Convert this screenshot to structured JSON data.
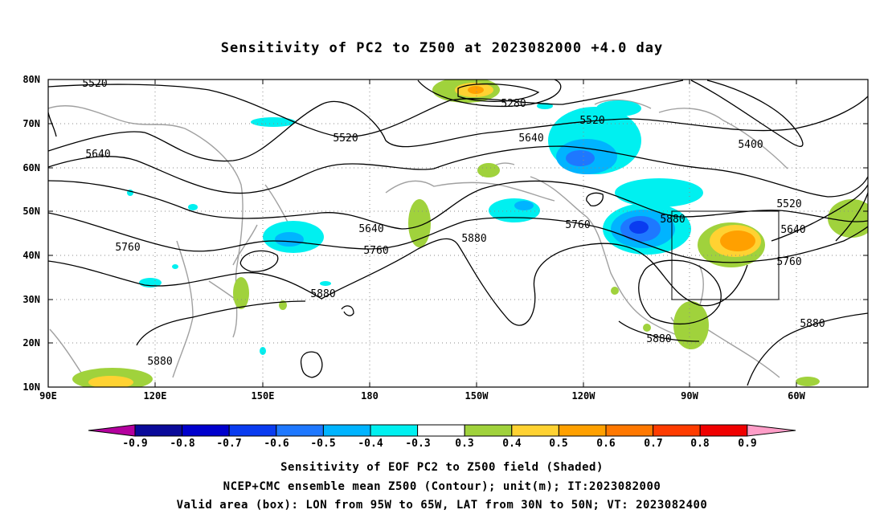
{
  "title": "Sensitivity of PC2 to Z500 at 2023082000 +4.0 day",
  "lat_labels": [
    "80N",
    "70N",
    "60N",
    "50N",
    "40N",
    "30N",
    "20N",
    "10N"
  ],
  "lon_labels": [
    "90E",
    "120E",
    "150E",
    "180",
    "150W",
    "120W",
    "90W",
    "60W"
  ],
  "contour_labels": [
    "5520",
    "5280",
    "5520",
    "5400",
    "5640",
    "5520",
    "5640",
    "5520",
    "5640",
    "5760",
    "5880",
    "5640",
    "5760",
    "5880",
    "5760",
    "5880",
    "5880",
    "5760",
    "5880",
    "5880"
  ],
  "colorbar": {
    "labels": [
      "-0.9",
      "-0.8",
      "-0.7",
      "-0.6",
      "-0.5",
      "-0.4",
      "-0.3",
      "0.3",
      "0.4",
      "0.5",
      "0.6",
      "0.7",
      "0.8",
      "0.9"
    ],
    "colors": [
      "#b4009e",
      "#0a0a9a",
      "#0000cd",
      "#0a3cf0",
      "#1e78ff",
      "#00b4ff",
      "#00f0f0",
      "#ffffff",
      "#a0d23c",
      "#ffd232",
      "#ffa000",
      "#ff7800",
      "#ff3c00",
      "#f00000",
      "#ff9ec8"
    ]
  },
  "valid_box": {
    "lon_from": "95W",
    "lon_to": "65W",
    "lat_from": "30N",
    "lat_to": "50N"
  },
  "captions": [
    "Sensitivity of EOF PC2 to Z500 field (Shaded)",
    "NCEP+CMC ensemble mean Z500 (Contour); unit(m); IT:2023082000",
    "Valid area (box): LON from 95W to 65W, LAT from 30N to 50N; VT: 2023082400"
  ]
}
